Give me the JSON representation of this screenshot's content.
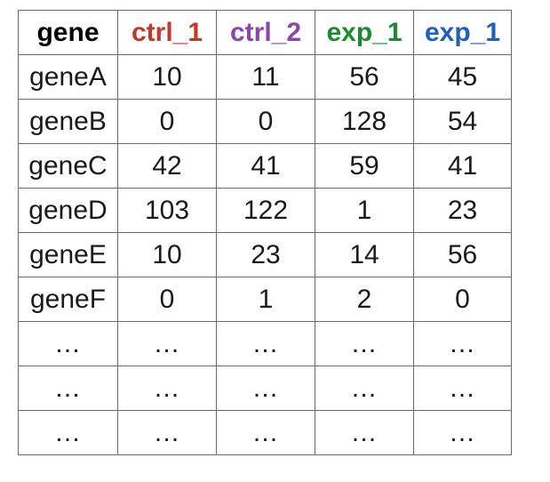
{
  "table": {
    "headers": [
      {
        "label": "gene",
        "color": "#000000"
      },
      {
        "label": "ctrl_1",
        "color": "#c0392b"
      },
      {
        "label": "ctrl_2",
        "color": "#8e44ad"
      },
      {
        "label": "exp_1",
        "color": "#1e8a2e"
      },
      {
        "label": "exp_1",
        "color": "#1f5fbf"
      }
    ],
    "rows": [
      [
        "geneA",
        "10",
        "11",
        "56",
        "45"
      ],
      [
        "geneB",
        "0",
        "0",
        "128",
        "54"
      ],
      [
        "geneC",
        "42",
        "41",
        "59",
        "41"
      ],
      [
        "geneD",
        "103",
        "122",
        "1",
        "23"
      ],
      [
        "geneE",
        "10",
        "23",
        "14",
        "56"
      ],
      [
        "geneF",
        "0",
        "1",
        "2",
        "0"
      ],
      [
        "…",
        "…",
        "…",
        "…",
        "…"
      ],
      [
        "…",
        "…",
        "…",
        "…",
        "…"
      ],
      [
        "…",
        "…",
        "…",
        "…",
        "…"
      ]
    ]
  }
}
